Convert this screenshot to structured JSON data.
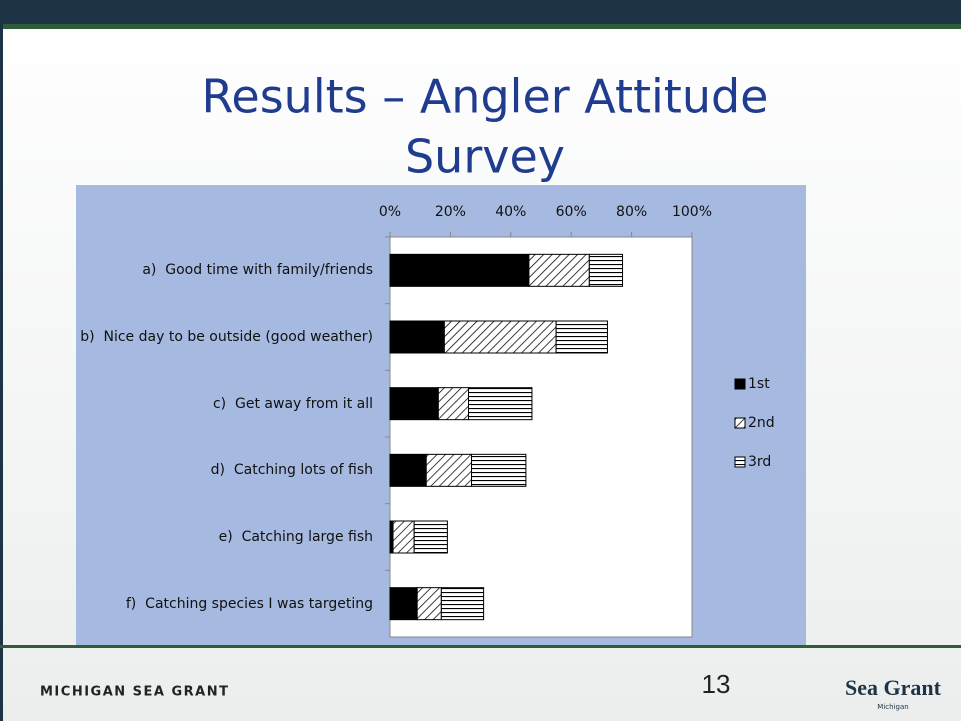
{
  "slide": {
    "title_lines": [
      "Results – Angler Attitude",
      "Survey"
    ],
    "footer": "MICHIGAN SEA GRANT",
    "page_number": "13",
    "logo": "Sea Grant",
    "logo_sub": "Michigan"
  },
  "chart_data": {
    "type": "stacked-barh",
    "categories": [
      "a)  Good time with family/friends",
      "b)  Nice day to be outside (good weather)",
      "c)  Get away from it all",
      "d)  Catching lots of fish",
      "e)  Catching large fish",
      "f)  Catching species I was targeting"
    ],
    "series": [
      {
        "name": "1st",
        "color": "#000000",
        "pattern": "solid",
        "values": [
          46,
          18,
          16,
          12,
          1,
          9
        ]
      },
      {
        "name": "2nd",
        "color": "#000000",
        "pattern": "diagonal",
        "values": [
          20,
          37,
          10,
          15,
          7,
          8
        ]
      },
      {
        "name": "3rd",
        "color": "#000000",
        "pattern": "horizontal",
        "values": [
          11,
          17,
          21,
          18,
          11,
          14
        ]
      }
    ],
    "xlim": [
      0,
      100
    ],
    "xticks": [
      {
        "value": 0,
        "label": "0%"
      },
      {
        "value": 20,
        "label": "20%"
      },
      {
        "value": 40,
        "label": "40%"
      },
      {
        "value": 60,
        "label": "60%"
      },
      {
        "value": 80,
        "label": "80%"
      },
      {
        "value": 100,
        "label": "100%"
      }
    ],
    "legend": "right"
  }
}
